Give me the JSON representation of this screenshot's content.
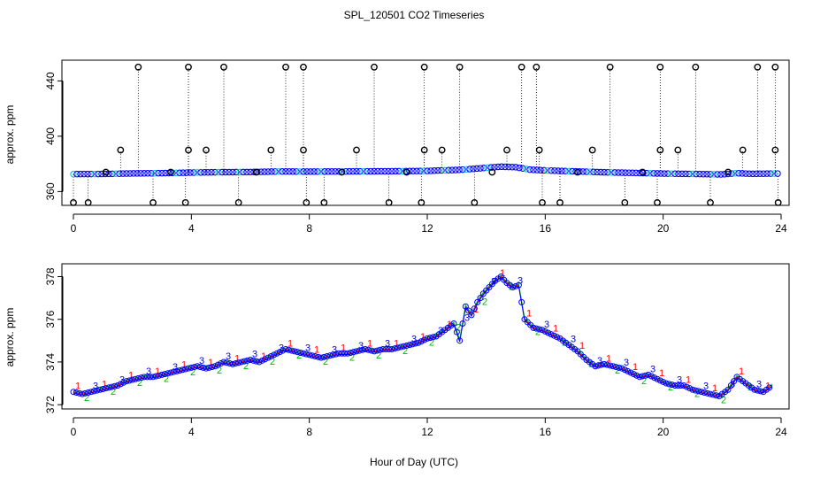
{
  "title": "SPL_120501  CO2 Timeseries",
  "xlabel": "Hour of Day (UTC)",
  "colors": {
    "raw": "#000000",
    "blue": "#0000ff",
    "cyan": "#00cccc",
    "red": "#ff0000",
    "green": "#00bb00",
    "orange": "#dd8800"
  },
  "chart_data": [
    {
      "type": "scatter",
      "panel": "top",
      "ylabel": "approx. ppm",
      "xlim": [
        0,
        24
      ],
      "ylim": [
        350,
        455
      ],
      "xticks": [
        0,
        4,
        8,
        12,
        16,
        20,
        24
      ],
      "yticks": [
        360,
        400,
        440
      ],
      "baseline_series": [
        {
          "x": 0.0,
          "y": 372.6
        },
        {
          "x": 1.0,
          "y": 372.7
        },
        {
          "x": 2.0,
          "y": 373.1
        },
        {
          "x": 3.0,
          "y": 373.3
        },
        {
          "x": 4.0,
          "y": 373.7
        },
        {
          "x": 5.0,
          "y": 374.0
        },
        {
          "x": 6.0,
          "y": 374.1
        },
        {
          "x": 7.0,
          "y": 374.5
        },
        {
          "x": 8.0,
          "y": 374.4
        },
        {
          "x": 9.0,
          "y": 374.5
        },
        {
          "x": 10.0,
          "y": 374.6
        },
        {
          "x": 11.0,
          "y": 374.7
        },
        {
          "x": 12.0,
          "y": 374.9
        },
        {
          "x": 12.5,
          "y": 375.3
        },
        {
          "x": 13.0,
          "y": 375.6
        },
        {
          "x": 13.5,
          "y": 376.3
        },
        {
          "x": 14.0,
          "y": 377.2
        },
        {
          "x": 14.5,
          "y": 378.0
        },
        {
          "x": 15.0,
          "y": 377.6
        },
        {
          "x": 15.5,
          "y": 375.8
        },
        {
          "x": 16.0,
          "y": 375.3
        },
        {
          "x": 17.0,
          "y": 374.6
        },
        {
          "x": 18.0,
          "y": 373.9
        },
        {
          "x": 19.0,
          "y": 373.5
        },
        {
          "x": 20.0,
          "y": 373.0
        },
        {
          "x": 21.0,
          "y": 372.7
        },
        {
          "x": 22.0,
          "y": 372.4
        },
        {
          "x": 22.5,
          "y": 373.3
        },
        {
          "x": 23.0,
          "y": 372.8
        },
        {
          "x": 23.7,
          "y": 373.0
        }
      ],
      "spikes": [
        {
          "x": 0.0,
          "y": 352.0
        },
        {
          "x": 0.5,
          "y": 352.0
        },
        {
          "x": 1.1,
          "y": 374.0
        },
        {
          "x": 1.6,
          "y": 390.0
        },
        {
          "x": 2.2,
          "y": 450.0
        },
        {
          "x": 2.7,
          "y": 352.0
        },
        {
          "x": 3.3,
          "y": 374.0
        },
        {
          "x": 3.8,
          "y": 352.0
        },
        {
          "x": 3.9,
          "y": 450.0
        },
        {
          "x": 3.9,
          "y": 390.0
        },
        {
          "x": 4.5,
          "y": 390.0
        },
        {
          "x": 5.1,
          "y": 450.0
        },
        {
          "x": 5.6,
          "y": 352.0
        },
        {
          "x": 6.2,
          "y": 374.0
        },
        {
          "x": 6.7,
          "y": 390.0
        },
        {
          "x": 7.2,
          "y": 450.0
        },
        {
          "x": 7.8,
          "y": 450.0
        },
        {
          "x": 7.8,
          "y": 390.0
        },
        {
          "x": 7.9,
          "y": 352.0
        },
        {
          "x": 8.5,
          "y": 352.0
        },
        {
          "x": 9.1,
          "y": 374.0
        },
        {
          "x": 9.6,
          "y": 390.0
        },
        {
          "x": 10.2,
          "y": 450.0
        },
        {
          "x": 10.7,
          "y": 352.0
        },
        {
          "x": 11.3,
          "y": 374.0
        },
        {
          "x": 11.8,
          "y": 352.0
        },
        {
          "x": 11.9,
          "y": 450.0
        },
        {
          "x": 11.9,
          "y": 390.0
        },
        {
          "x": 12.5,
          "y": 390.0
        },
        {
          "x": 13.1,
          "y": 450.0
        },
        {
          "x": 13.6,
          "y": 352.0
        },
        {
          "x": 14.2,
          "y": 374.0
        },
        {
          "x": 14.7,
          "y": 390.0
        },
        {
          "x": 15.2,
          "y": 450.0
        },
        {
          "x": 15.7,
          "y": 450.0
        },
        {
          "x": 15.8,
          "y": 390.0
        },
        {
          "x": 15.9,
          "y": 352.0
        },
        {
          "x": 16.5,
          "y": 352.0
        },
        {
          "x": 17.1,
          "y": 374.0
        },
        {
          "x": 17.6,
          "y": 390.0
        },
        {
          "x": 18.2,
          "y": 450.0
        },
        {
          "x": 18.7,
          "y": 352.0
        },
        {
          "x": 19.3,
          "y": 374.0
        },
        {
          "x": 19.8,
          "y": 352.0
        },
        {
          "x": 19.9,
          "y": 450.0
        },
        {
          "x": 19.9,
          "y": 390.0
        },
        {
          "x": 20.5,
          "y": 390.0
        },
        {
          "x": 21.1,
          "y": 450.0
        },
        {
          "x": 21.6,
          "y": 352.0
        },
        {
          "x": 22.2,
          "y": 374.0
        },
        {
          "x": 22.7,
          "y": 390.0
        },
        {
          "x": 23.2,
          "y": 450.0
        },
        {
          "x": 23.8,
          "y": 450.0
        },
        {
          "x": 23.8,
          "y": 390.0
        },
        {
          "x": 23.9,
          "y": 352.0
        }
      ]
    },
    {
      "type": "line",
      "panel": "bottom",
      "ylabel": "approx. ppm",
      "xlim": [
        0,
        24
      ],
      "ylim": [
        371.8,
        378.6
      ],
      "xticks": [
        0,
        4,
        8,
        12,
        16,
        20,
        24
      ],
      "yticks": [
        372,
        374,
        376,
        378
      ],
      "series": [
        {
          "name": "timeseries",
          "marker_labels": [
            "1",
            "2",
            "3"
          ],
          "points": [
            {
              "x": 0.0,
              "y": 372.6
            },
            {
              "x": 0.3,
              "y": 372.5
            },
            {
              "x": 0.6,
              "y": 372.6
            },
            {
              "x": 0.9,
              "y": 372.7
            },
            {
              "x": 1.2,
              "y": 372.8
            },
            {
              "x": 1.5,
              "y": 372.9
            },
            {
              "x": 1.8,
              "y": 373.1
            },
            {
              "x": 2.1,
              "y": 373.2
            },
            {
              "x": 2.4,
              "y": 373.3
            },
            {
              "x": 2.7,
              "y": 373.3
            },
            {
              "x": 3.0,
              "y": 373.4
            },
            {
              "x": 3.3,
              "y": 373.5
            },
            {
              "x": 3.6,
              "y": 373.6
            },
            {
              "x": 3.9,
              "y": 373.7
            },
            {
              "x": 4.2,
              "y": 373.8
            },
            {
              "x": 4.5,
              "y": 373.7
            },
            {
              "x": 4.8,
              "y": 373.8
            },
            {
              "x": 5.1,
              "y": 374.0
            },
            {
              "x": 5.4,
              "y": 373.9
            },
            {
              "x": 5.7,
              "y": 374.0
            },
            {
              "x": 6.0,
              "y": 374.1
            },
            {
              "x": 6.3,
              "y": 374.0
            },
            {
              "x": 6.6,
              "y": 374.2
            },
            {
              "x": 6.9,
              "y": 374.4
            },
            {
              "x": 7.2,
              "y": 374.6
            },
            {
              "x": 7.5,
              "y": 374.5
            },
            {
              "x": 7.8,
              "y": 374.4
            },
            {
              "x": 8.1,
              "y": 374.3
            },
            {
              "x": 8.4,
              "y": 374.2
            },
            {
              "x": 8.7,
              "y": 374.3
            },
            {
              "x": 9.0,
              "y": 374.4
            },
            {
              "x": 9.3,
              "y": 374.4
            },
            {
              "x": 9.6,
              "y": 374.5
            },
            {
              "x": 9.9,
              "y": 374.6
            },
            {
              "x": 10.2,
              "y": 374.5
            },
            {
              "x": 10.5,
              "y": 374.6
            },
            {
              "x": 10.8,
              "y": 374.6
            },
            {
              "x": 11.1,
              "y": 374.7
            },
            {
              "x": 11.4,
              "y": 374.8
            },
            {
              "x": 11.7,
              "y": 374.9
            },
            {
              "x": 12.0,
              "y": 375.1
            },
            {
              "x": 12.3,
              "y": 375.2
            },
            {
              "x": 12.6,
              "y": 375.5
            },
            {
              "x": 12.9,
              "y": 375.8
            },
            {
              "x": 13.1,
              "y": 375.0
            },
            {
              "x": 13.3,
              "y": 376.6
            },
            {
              "x": 13.5,
              "y": 376.2
            },
            {
              "x": 13.7,
              "y": 376.8
            },
            {
              "x": 13.9,
              "y": 377.2
            },
            {
              "x": 14.1,
              "y": 377.5
            },
            {
              "x": 14.3,
              "y": 377.8
            },
            {
              "x": 14.5,
              "y": 378.0
            },
            {
              "x": 14.7,
              "y": 377.7
            },
            {
              "x": 14.9,
              "y": 377.5
            },
            {
              "x": 15.1,
              "y": 377.6
            },
            {
              "x": 15.3,
              "y": 376.0
            },
            {
              "x": 15.6,
              "y": 375.6
            },
            {
              "x": 15.9,
              "y": 375.5
            },
            {
              "x": 16.2,
              "y": 375.3
            },
            {
              "x": 16.5,
              "y": 375.1
            },
            {
              "x": 16.8,
              "y": 374.8
            },
            {
              "x": 17.1,
              "y": 374.5
            },
            {
              "x": 17.4,
              "y": 374.1
            },
            {
              "x": 17.7,
              "y": 373.8
            },
            {
              "x": 18.0,
              "y": 373.9
            },
            {
              "x": 18.3,
              "y": 373.8
            },
            {
              "x": 18.6,
              "y": 373.7
            },
            {
              "x": 18.9,
              "y": 373.5
            },
            {
              "x": 19.2,
              "y": 373.3
            },
            {
              "x": 19.5,
              "y": 373.4
            },
            {
              "x": 19.8,
              "y": 373.2
            },
            {
              "x": 20.1,
              "y": 373.0
            },
            {
              "x": 20.4,
              "y": 372.9
            },
            {
              "x": 20.7,
              "y": 372.9
            },
            {
              "x": 21.0,
              "y": 372.7
            },
            {
              "x": 21.3,
              "y": 372.6
            },
            {
              "x": 21.6,
              "y": 372.5
            },
            {
              "x": 21.9,
              "y": 372.4
            },
            {
              "x": 22.2,
              "y": 372.7
            },
            {
              "x": 22.5,
              "y": 373.3
            },
            {
              "x": 22.8,
              "y": 373.0
            },
            {
              "x": 23.1,
              "y": 372.7
            },
            {
              "x": 23.4,
              "y": 372.6
            },
            {
              "x": 23.7,
              "y": 372.9
            }
          ]
        }
      ]
    }
  ]
}
